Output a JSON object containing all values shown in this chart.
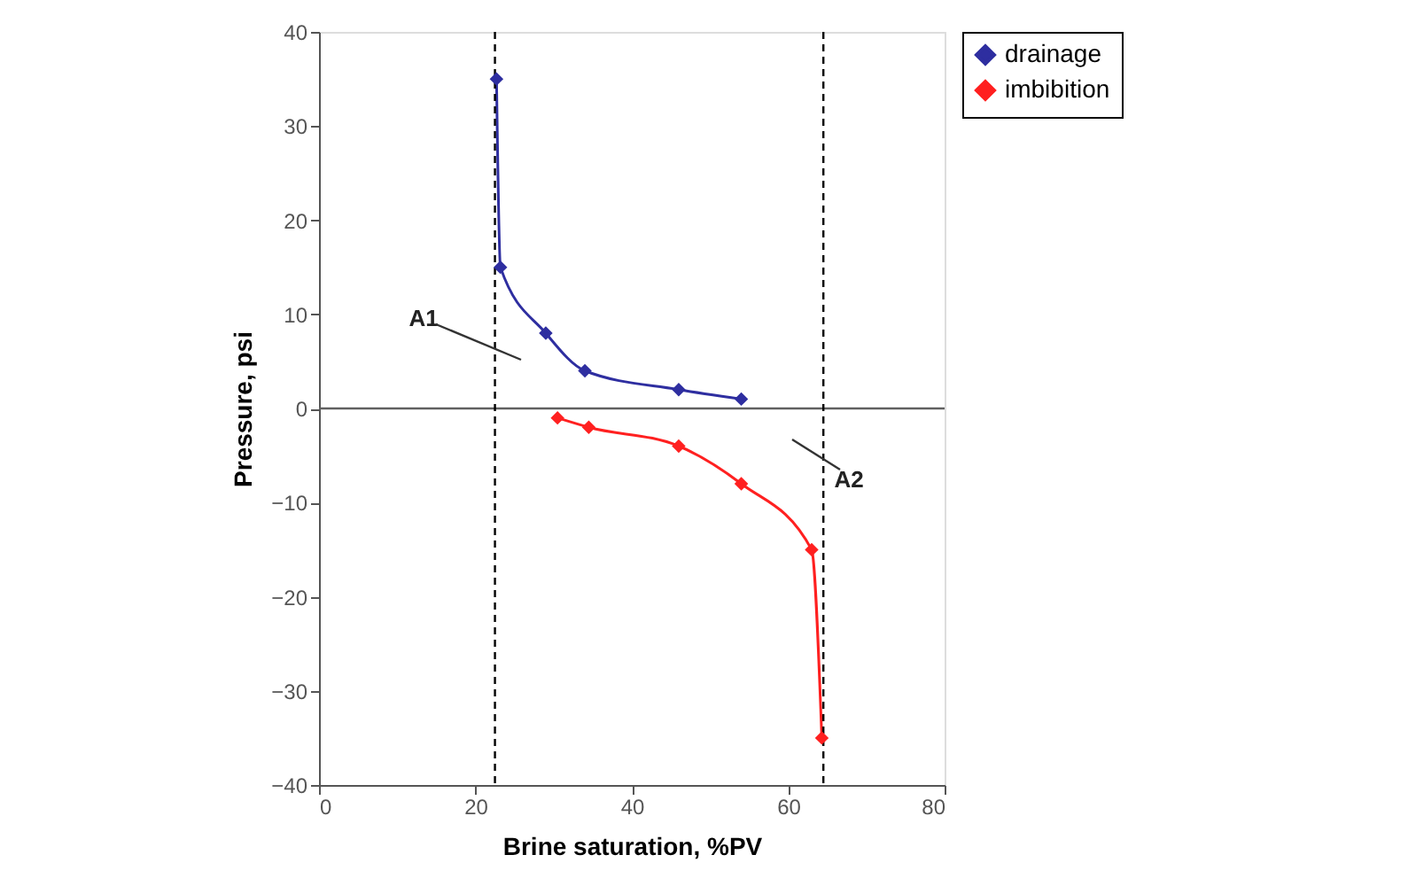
{
  "chart_data": {
    "type": "line",
    "xlabel": "Brine saturation, %PV",
    "ylabel": "Pressure, psi",
    "series": [
      {
        "name": "drainage",
        "color": "#2e2ea0",
        "x": [
          22.7,
          23.2,
          29,
          34,
          46,
          54
        ],
        "values": [
          35,
          15,
          8,
          4,
          2,
          1
        ]
      },
      {
        "name": "imbibition",
        "color": "#ff2020",
        "x": [
          30.5,
          34.5,
          46,
          54,
          63,
          64.3
        ],
        "values": [
          -1,
          -2,
          -4,
          -8,
          -15,
          -35
        ]
      }
    ],
    "xlim": [
      0,
      80
    ],
    "xticks": [
      0,
      20,
      40,
      60,
      80
    ],
    "ylim": [
      -40,
      40
    ],
    "yticks": [
      -40,
      -30,
      -20,
      -10,
      0,
      10,
      20,
      30,
      40
    ],
    "ref_lines": [
      {
        "axis": "y",
        "value": 0,
        "color": "#606060",
        "line_style": "solid"
      },
      {
        "axis": "x",
        "value": 22.5,
        "color": "#000000",
        "line_style": "dashed"
      },
      {
        "axis": "x",
        "value": 64.5,
        "color": "#000000",
        "line_style": "dashed"
      }
    ],
    "annotations": [
      "A1",
      "A2"
    ],
    "marker": "diamond",
    "line_style": "solid",
    "grid": false,
    "legend": "right"
  }
}
